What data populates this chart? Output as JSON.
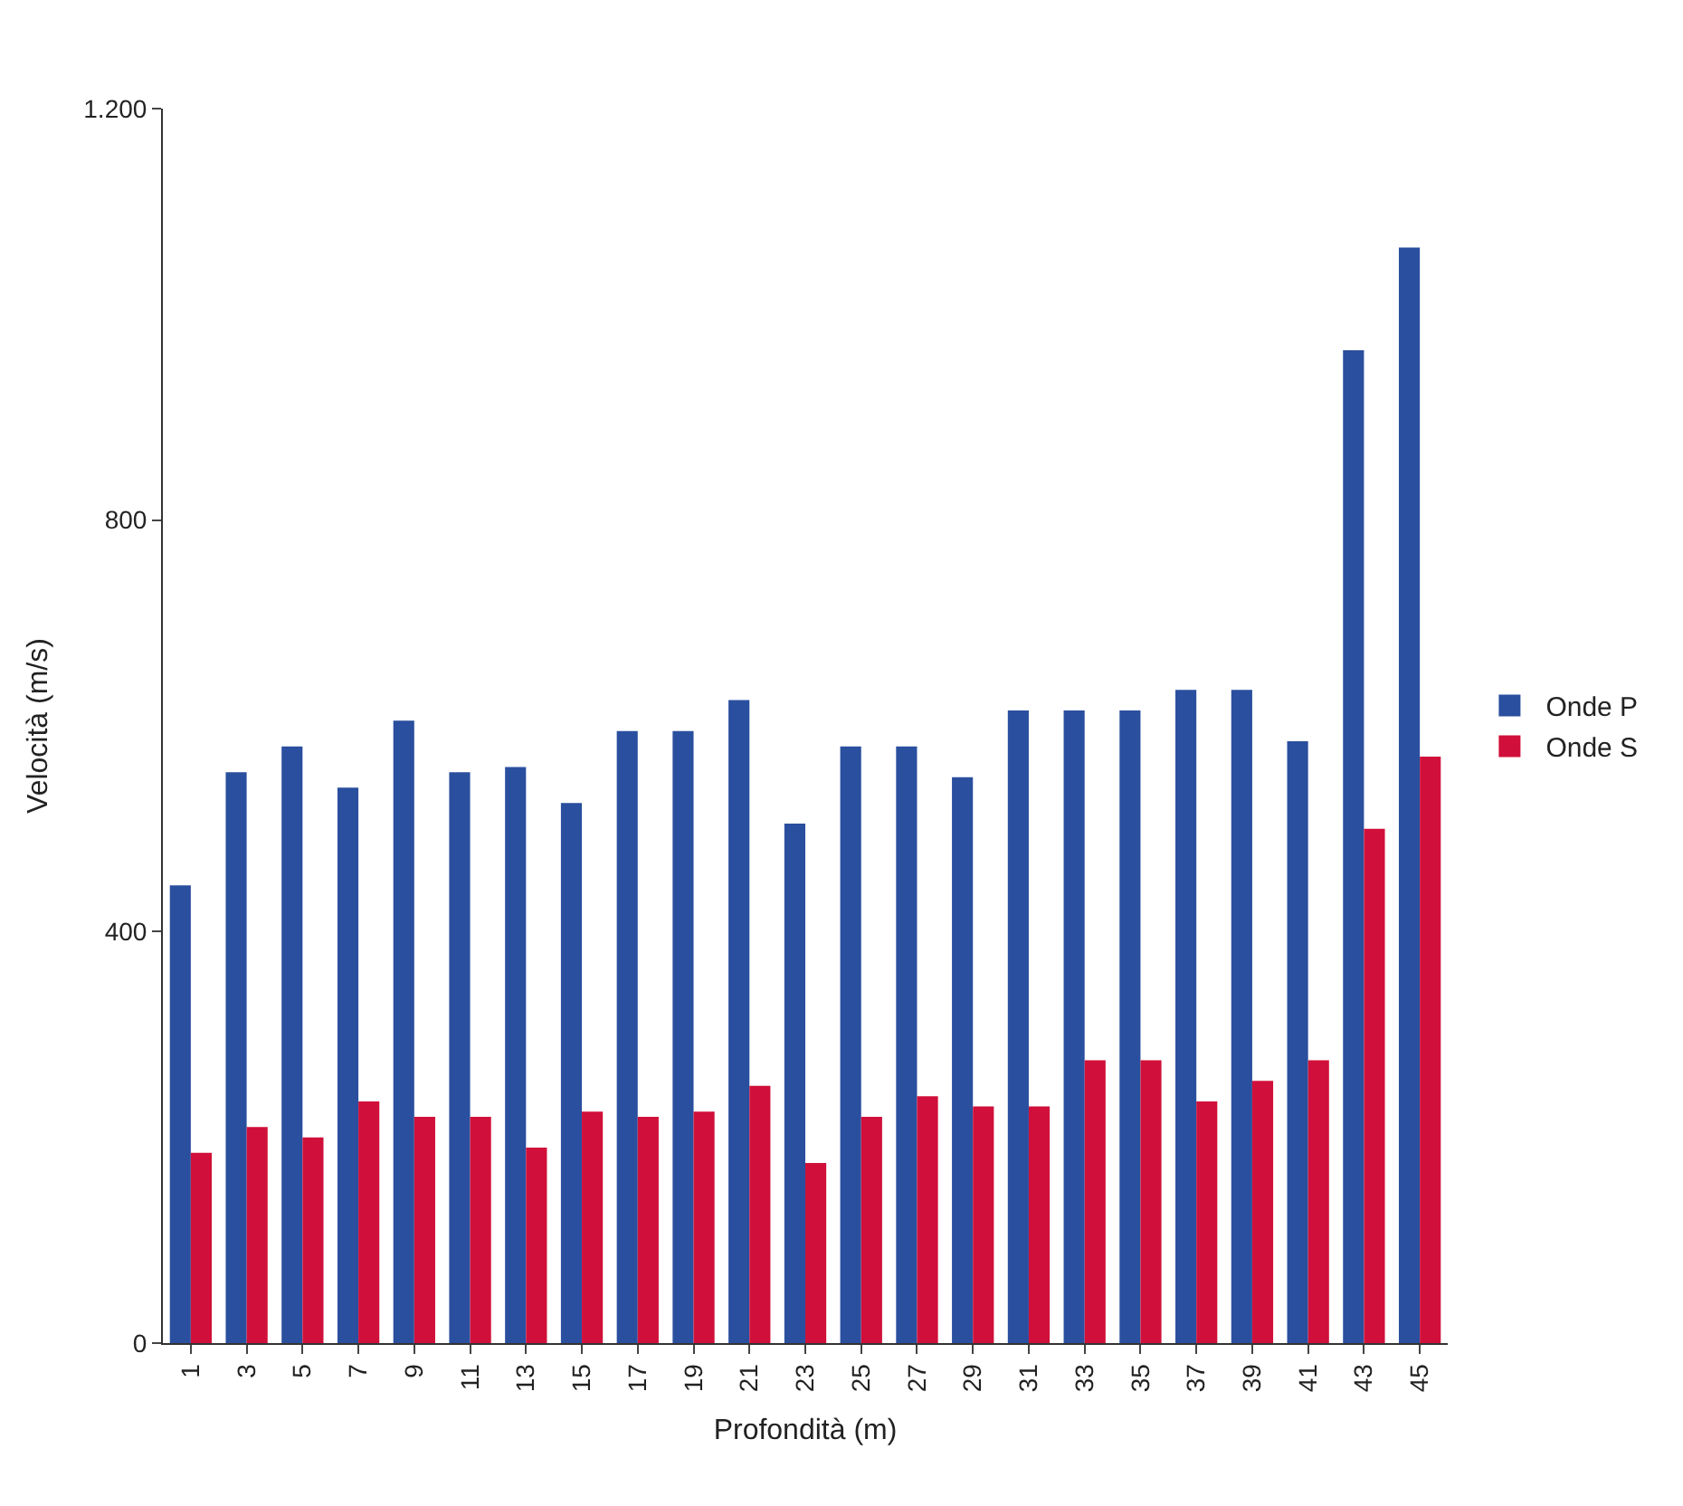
{
  "chart_data": {
    "type": "bar",
    "xlabel": "Profondità (m)",
    "ylabel": "Velocità (m/s)",
    "categories": [
      "1",
      "3",
      "5",
      "7",
      "9",
      "11",
      "13",
      "15",
      "17",
      "19",
      "21",
      "23",
      "25",
      "27",
      "29",
      "31",
      "33",
      "35",
      "37",
      "39",
      "41",
      "43",
      "45"
    ],
    "series": [
      {
        "name": "Onde P",
        "color": "#2a4f9e",
        "values": [
          445,
          555,
          580,
          540,
          605,
          555,
          560,
          525,
          595,
          595,
          625,
          505,
          580,
          580,
          550,
          615,
          615,
          615,
          635,
          635,
          585,
          965,
          1065
        ]
      },
      {
        "name": "Onde S",
        "color": "#d0103a",
        "values": [
          185,
          210,
          200,
          235,
          220,
          220,
          190,
          225,
          220,
          225,
          250,
          175,
          220,
          240,
          230,
          230,
          275,
          275,
          235,
          255,
          275,
          500,
          570
        ]
      }
    ],
    "ylim": [
      0,
      1200
    ],
    "yticks": [
      0,
      400,
      800,
      {
        "value": 1200,
        "label": "1.200"
      }
    ],
    "legend": "right"
  }
}
